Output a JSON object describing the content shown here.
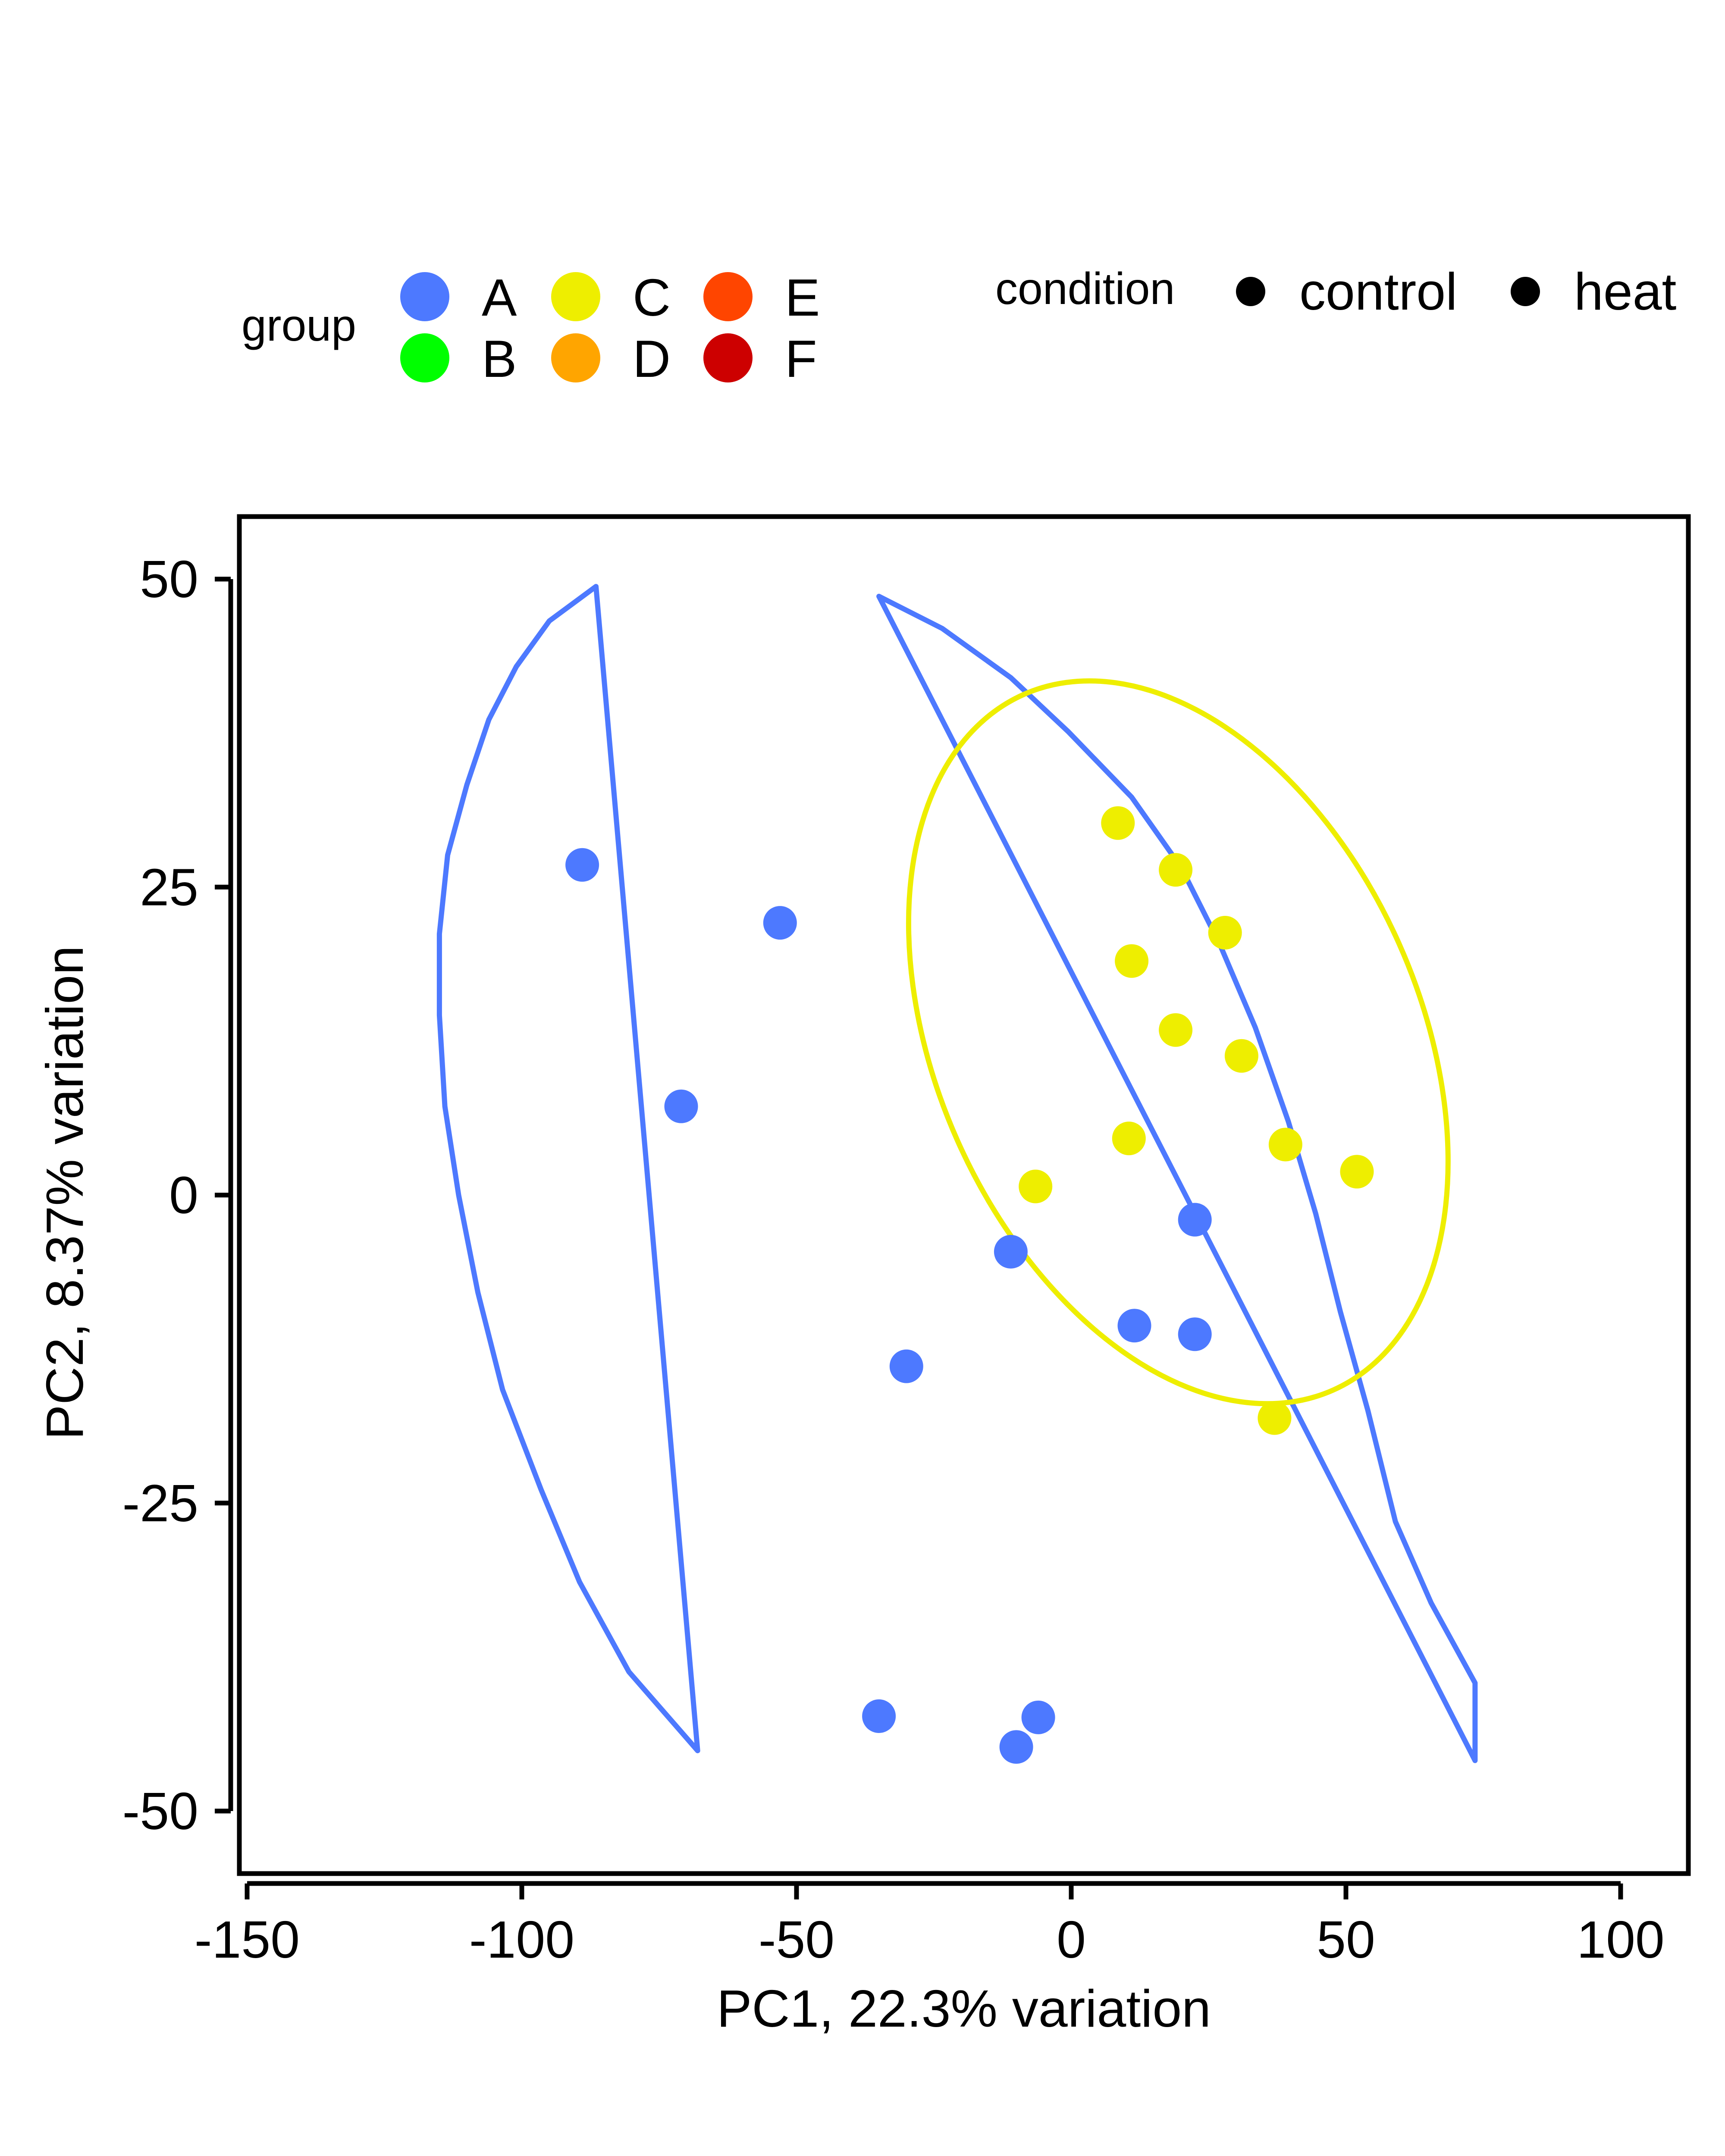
{
  "chart_data": {
    "type": "scatter",
    "xlabel": "PC1, 22.3% variation",
    "ylabel": "PC2, 8.37% variation",
    "xlim": [
      -150,
      112
    ],
    "ylim": [
      -55,
      55
    ],
    "xticks": [
      -150,
      -100,
      -50,
      0,
      50,
      100
    ],
    "yticks": [
      50,
      25,
      0,
      -25,
      -50
    ],
    "xtick_labels": [
      "-150",
      "-100",
      "-50",
      "0",
      "50",
      "100"
    ],
    "ytick_labels": [
      "50",
      "25",
      "0",
      "-25",
      "-50"
    ],
    "grid": false,
    "legend": {
      "placement": "top",
      "group_title": "group",
      "groups": [
        {
          "label": "A",
          "color": "#4D79FF"
        },
        {
          "label": "B",
          "color": "#00FF00"
        },
        {
          "label": "C",
          "color": "#EEEE00"
        },
        {
          "label": "D",
          "color": "#FFA500"
        },
        {
          "label": "E",
          "color": "#FF4500"
        },
        {
          "label": "F",
          "color": "#CD0000"
        }
      ],
      "condition_title": "condition",
      "conditions": [
        {
          "label": "control",
          "color": "#000000"
        },
        {
          "label": "heat",
          "color": "#000000"
        }
      ]
    },
    "series": [
      {
        "group": "A",
        "color": "#4D79FF",
        "points": [
          [
            -89,
            26.8
          ],
          [
            -53,
            22.1
          ],
          [
            -71,
            7.2
          ],
          [
            -11,
            -4.6
          ],
          [
            22.5,
            -2.0
          ],
          [
            -30,
            -13.9
          ],
          [
            11.5,
            -10.6
          ],
          [
            22.5,
            -11.3
          ],
          [
            -35,
            -42.3
          ],
          [
            -6,
            -42.4
          ],
          [
            -10,
            -44.8
          ]
        ]
      },
      {
        "group": "C",
        "color": "#EEEE00",
        "points": [
          [
            8.5,
            30.2
          ],
          [
            19,
            26.4
          ],
          [
            28,
            21.3
          ],
          [
            11,
            19.0
          ],
          [
            19,
            13.4
          ],
          [
            31,
            11.3
          ],
          [
            10.5,
            4.6
          ],
          [
            39,
            4.1
          ],
          [
            52,
            1.9
          ],
          [
            -6.5,
            0.7
          ],
          [
            37,
            -18.1
          ]
        ]
      }
    ],
    "hulls": [
      {
        "group": "A",
        "color": "#4D79FF",
        "shape": "convex-ellipse",
        "polygons": [
          [
            [
              -86.5,
              49.4
            ],
            [
              -95,
              46.6
            ],
            [
              -101,
              42.9
            ],
            [
              -106,
              38.6
            ],
            [
              -110,
              33.3
            ],
            [
              -113.5,
              27.6
            ],
            [
              -115,
              21.2
            ],
            [
              -115,
              14.6
            ],
            [
              -114,
              7.2
            ],
            [
              -111.5,
              0.0
            ],
            [
              -108,
              -7.9
            ],
            [
              -103.5,
              -15.8
            ],
            [
              -96.5,
              -23.9
            ],
            [
              -89.5,
              -31.4
            ],
            [
              -80.5,
              -38.7
            ],
            [
              -68,
              -45.1
            ]
          ],
          [
            [
              -35,
              48.6
            ],
            [
              -23.5,
              46.0
            ],
            [
              -11,
              42.0
            ],
            [
              -0.5,
              37.6
            ],
            [
              11,
              32.3
            ],
            [
              20,
              26.6
            ],
            [
              27,
              20.4
            ],
            [
              33.5,
              13.6
            ],
            [
              39.5,
              6.0
            ],
            [
              44.5,
              -1.5
            ],
            [
              49,
              -9.5
            ],
            [
              54,
              -17.5
            ],
            [
              59,
              -26.5
            ],
            [
              65.5,
              -33.1
            ],
            [
              73.5,
              -39.6
            ],
            [
              73.5,
              -45.9
            ]
          ]
        ]
      },
      {
        "group": "C",
        "color": "#EEEE00",
        "shape": "ellipse",
        "ellipse": {
          "cx": 19.5,
          "cy": 12.4,
          "rx": 44,
          "ry": 30.9,
          "rotation_deg": -24
        }
      }
    ]
  }
}
